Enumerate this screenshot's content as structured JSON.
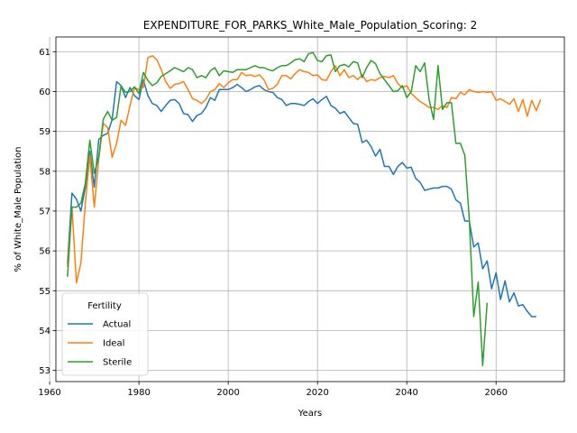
{
  "chart_data": {
    "type": "line",
    "title": "EXPENDITURE_FOR_PARKS_White_Male_Population_Scoring: 2",
    "xlabel": "Years",
    "ylabel": "% of White_Male Population",
    "xlim": [
      1961.4,
      2075.3
    ],
    "ylim": [
      52.72,
      61.37
    ],
    "xticks": [
      1960,
      1980,
      2000,
      2020,
      2040,
      2060
    ],
    "yticks": [
      53,
      54,
      55,
      56,
      57,
      58,
      59,
      60,
      61
    ],
    "grid": true,
    "legend": {
      "title": "Fertility",
      "position": "bottom-left"
    },
    "series": [
      {
        "name": "Actual",
        "color": "#1f77b4",
        "x": [
          1964,
          1965,
          1966,
          1967,
          1968,
          1969,
          1970,
          1971,
          1972,
          1973,
          1974,
          1975,
          1976,
          1977,
          1978,
          1979,
          1980,
          1981,
          1982,
          1983,
          1984,
          1985,
          1986,
          1987,
          1988,
          1989,
          1990,
          1991,
          1992,
          1993,
          1994,
          1995,
          1996,
          1997,
          1998,
          1999,
          2000,
          2001,
          2002,
          2003,
          2004,
          2005,
          2006,
          2007,
          2008,
          2009,
          2010,
          2011,
          2012,
          2013,
          2014,
          2015,
          2016,
          2017,
          2018,
          2019,
          2020,
          2021,
          2022,
          2023,
          2024,
          2025,
          2026,
          2027,
          2028,
          2029,
          2030,
          2031,
          2032,
          2033,
          2034,
          2035,
          2036,
          2037,
          2038,
          2039,
          2040,
          2041,
          2042,
          2043,
          2044,
          2045,
          2046,
          2047,
          2048,
          2049,
          2050,
          2051,
          2052,
          2053,
          2054,
          2055,
          2056,
          2057,
          2058,
          2059,
          2060,
          2061,
          2062,
          2063,
          2064,
          2065,
          2066,
          2067,
          2068,
          2069,
          2070
        ],
        "values": [
          55.7,
          57.45,
          57.3,
          57.0,
          57.6,
          58.5,
          57.6,
          58.8,
          58.9,
          58.95,
          59.3,
          60.25,
          60.15,
          59.85,
          60.1,
          59.9,
          59.8,
          60.3,
          59.9,
          59.7,
          59.65,
          59.5,
          59.65,
          59.78,
          59.8,
          59.7,
          59.45,
          59.42,
          59.25,
          59.4,
          59.45,
          59.6,
          59.85,
          59.78,
          60.05,
          60.05,
          60.05,
          60.1,
          60.18,
          60.1,
          60.0,
          60.05,
          60.12,
          60.15,
          60.05,
          60.0,
          59.98,
          59.85,
          59.8,
          59.65,
          59.7,
          59.7,
          59.68,
          59.65,
          59.75,
          59.82,
          59.7,
          59.8,
          59.88,
          59.65,
          59.58,
          59.45,
          59.5,
          59.35,
          59.2,
          59.18,
          58.72,
          58.78,
          58.62,
          58.38,
          58.55,
          58.12,
          58.12,
          57.92,
          58.12,
          58.22,
          58.08,
          58.1,
          57.82,
          57.72,
          57.52,
          57.55,
          57.58,
          57.58,
          57.62,
          57.62,
          57.55,
          57.28,
          57.2,
          56.75,
          56.75,
          56.1,
          56.2,
          55.55,
          55.75,
          55.05,
          55.45,
          54.78,
          55.25,
          54.72,
          54.95,
          54.62,
          54.65,
          54.48,
          54.35,
          54.35,
          null
        ]
      },
      {
        "name": "Ideal",
        "color": "#ff7f0e",
        "x": [
          1964,
          1965,
          1966,
          1967,
          1968,
          1969,
          1970,
          1971,
          1972,
          1973,
          1974,
          1975,
          1976,
          1977,
          1978,
          1979,
          1980,
          1981,
          1982,
          1983,
          1984,
          1985,
          1986,
          1987,
          1988,
          1989,
          1990,
          1991,
          1992,
          1993,
          1994,
          1995,
          1996,
          1997,
          1998,
          1999,
          2000,
          2001,
          2002,
          2003,
          2004,
          2005,
          2006,
          2007,
          2008,
          2009,
          2010,
          2011,
          2012,
          2013,
          2014,
          2015,
          2016,
          2017,
          2018,
          2019,
          2020,
          2021,
          2022,
          2023,
          2024,
          2025,
          2026,
          2027,
          2028,
          2029,
          2030,
          2031,
          2032,
          2033,
          2034,
          2035,
          2036,
          2037,
          2038,
          2039,
          2040,
          2041,
          2042,
          2043,
          2044,
          2045,
          2046,
          2047,
          2048,
          2049,
          2050,
          2051,
          2052,
          2053,
          2054,
          2055,
          2056,
          2057,
          2058,
          2059,
          2060,
          2061,
          2062,
          2063,
          2064,
          2065,
          2066,
          2067,
          2068,
          2069,
          2070
        ],
        "values": [
          55.6,
          57.1,
          55.2,
          55.7,
          57.2,
          58.4,
          57.1,
          58.3,
          59.2,
          59.1,
          58.35,
          58.7,
          59.28,
          59.15,
          59.65,
          60.1,
          60.05,
          60.1,
          60.85,
          60.9,
          60.8,
          60.55,
          60.25,
          60.08,
          60.18,
          60.2,
          60.25,
          60.05,
          59.82,
          59.78,
          59.7,
          59.8,
          60.0,
          60.05,
          60.2,
          60.1,
          60.22,
          60.3,
          60.3,
          60.48,
          60.4,
          60.42,
          60.38,
          60.42,
          60.3,
          60.05,
          60.08,
          60.18,
          60.4,
          60.4,
          60.32,
          60.45,
          60.55,
          60.5,
          60.48,
          60.4,
          60.42,
          60.3,
          60.28,
          60.5,
          60.65,
          60.4,
          60.55,
          60.35,
          60.4,
          60.3,
          60.42,
          60.25,
          60.3,
          60.28,
          60.35,
          60.38,
          60.35,
          60.4,
          60.2,
          60.1,
          60.15,
          59.95,
          59.85,
          59.75,
          59.68,
          59.6,
          59.6,
          59.55,
          59.65,
          59.6,
          59.85,
          59.82,
          59.98,
          59.92,
          60.05,
          60.0,
          59.98,
          60.0,
          59.98,
          60.0,
          59.78,
          59.82,
          59.75,
          59.68,
          59.82,
          59.5,
          59.8,
          59.38,
          59.78,
          59.52,
          59.8
        ]
      },
      {
        "name": "Sterile",
        "color": "#2ca02c",
        "x": [
          1964,
          1965,
          1966,
          1967,
          1968,
          1969,
          1970,
          1971,
          1972,
          1973,
          1974,
          1975,
          1976,
          1977,
          1978,
          1979,
          1980,
          1981,
          1982,
          1983,
          1984,
          1985,
          1986,
          1987,
          1988,
          1989,
          1990,
          1991,
          1992,
          1993,
          1994,
          1995,
          1996,
          1997,
          1998,
          1999,
          2000,
          2001,
          2002,
          2003,
          2004,
          2005,
          2006,
          2007,
          2008,
          2009,
          2010,
          2011,
          2012,
          2013,
          2014,
          2015,
          2016,
          2017,
          2018,
          2019,
          2020,
          2021,
          2022,
          2023,
          2024,
          2025,
          2026,
          2027,
          2028,
          2029,
          2030,
          2031,
          2032,
          2033,
          2034,
          2035,
          2036,
          2037,
          2038,
          2039,
          2040,
          2041,
          2042,
          2043,
          2044,
          2045,
          2046,
          2047,
          2048,
          2049,
          2050,
          2051,
          2052,
          2053,
          2054,
          2055,
          2056,
          2057,
          2058,
          2059,
          2060,
          2061,
          2062,
          2063,
          2064,
          2065,
          2066,
          2067,
          2068,
          2069,
          2070
        ],
        "values": [
          55.35,
          57.1,
          57.1,
          57.2,
          57.7,
          58.78,
          57.95,
          58.35,
          59.3,
          59.5,
          59.28,
          59.35,
          60.15,
          59.98,
          60.0,
          60.12,
          59.95,
          60.48,
          60.28,
          60.15,
          60.22,
          60.38,
          60.45,
          60.52,
          60.6,
          60.55,
          60.5,
          60.6,
          60.55,
          60.35,
          60.4,
          60.35,
          60.52,
          60.6,
          60.4,
          60.52,
          60.5,
          60.48,
          60.55,
          60.55,
          60.55,
          60.6,
          60.65,
          60.6,
          60.6,
          60.55,
          60.52,
          60.6,
          60.65,
          60.65,
          60.72,
          60.8,
          60.82,
          60.75,
          60.95,
          60.98,
          60.78,
          60.75,
          60.9,
          60.92,
          60.5,
          60.65,
          60.68,
          60.62,
          60.75,
          60.72,
          60.35,
          60.6,
          60.78,
          60.7,
          60.45,
          60.3,
          60.15,
          60.0,
          60.02,
          60.15,
          59.85,
          60.0,
          60.65,
          60.5,
          60.72,
          59.8,
          59.3,
          60.65,
          59.55,
          59.72,
          59.72,
          58.7,
          58.7,
          58.4,
          56.8,
          54.35,
          55.22,
          53.12,
          54.7,
          null,
          null,
          null,
          null,
          null,
          null,
          null,
          null,
          null,
          null,
          null,
          null
        ]
      }
    ]
  }
}
